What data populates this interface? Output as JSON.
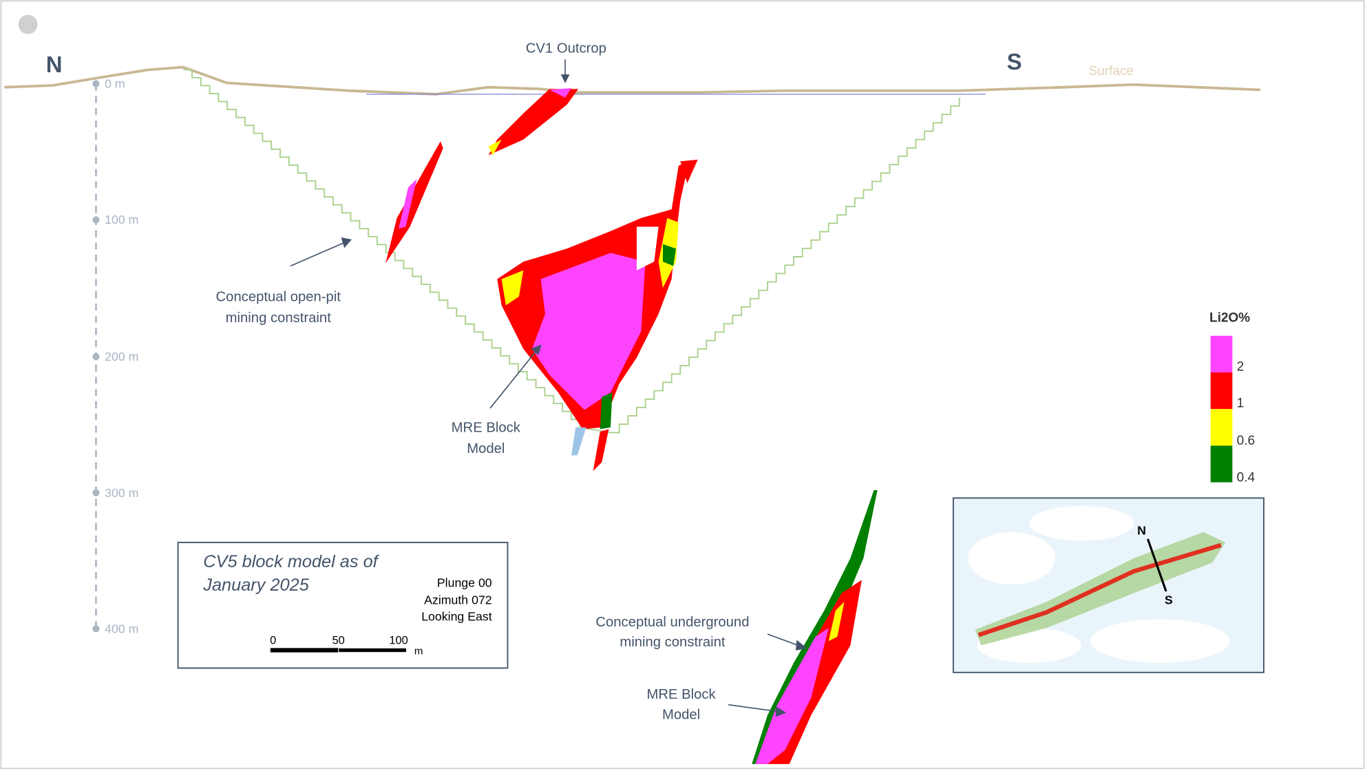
{
  "compass": {
    "north": "N",
    "south": "S"
  },
  "surface_label": "Surface",
  "outcrop_label": "CV1 Outcrop",
  "depth_labels": [
    "0 m",
    "100 m",
    "200 m",
    "300 m",
    "400 m"
  ],
  "open_pit_label": [
    "Conceptual open-pit",
    "mining constraint"
  ],
  "block_model_label": [
    "MRE Block",
    "Model"
  ],
  "underground_label": [
    "Conceptual underground",
    "mining constraint"
  ],
  "underground_block_label": [
    "MRE Block",
    "Model"
  ],
  "legend": {
    "title": "Li2O%",
    "labels": [
      "2",
      "1",
      "0.6",
      "0.4"
    ]
  },
  "caption": {
    "title": [
      "CV5 block model as of",
      "January 2025"
    ],
    "orientation": [
      "Plunge 00",
      "Azimuth 072",
      "Looking East"
    ],
    "scale_labels": [
      "0",
      "50",
      "100"
    ],
    "scale_unit": "m"
  },
  "inset": {
    "north": "N",
    "south": "S"
  }
}
